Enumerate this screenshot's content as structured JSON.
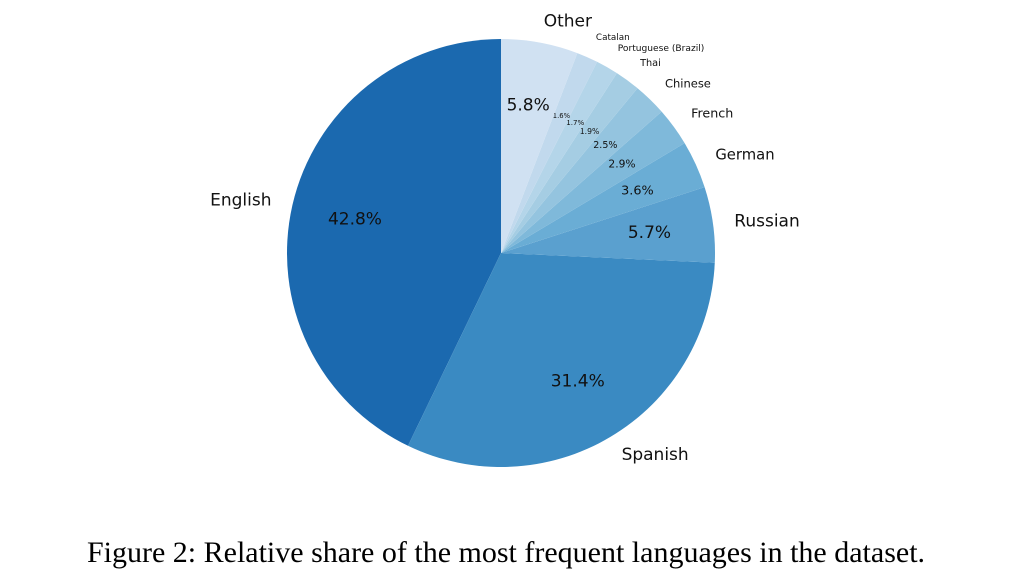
{
  "chart_data": {
    "type": "pie",
    "categories": [
      "English",
      "Spanish",
      "Russian",
      "German",
      "French",
      "Chinese",
      "Thai",
      "Portuguese (Brazil)",
      "Catalan",
      "Other"
    ],
    "values": [
      42.8,
      31.4,
      5.7,
      3.6,
      2.9,
      2.5,
      1.9,
      1.7,
      1.6,
      5.8
    ],
    "value_labels": [
      "42.8%",
      "31.4%",
      "5.7%",
      "3.6%",
      "2.9%",
      "2.5%",
      "1.9%",
      "1.7%",
      "1.6%",
      "5.8%"
    ],
    "colors": [
      "#1b69af",
      "#3a8ac2",
      "#5aa0cf",
      "#6aadd5",
      "#7fb9da",
      "#94c4df",
      "#a5cde3",
      "#b4d5e9",
      "#c1d9ed",
      "#d0e1f2"
    ],
    "caption": "Figure 2: Relative share of the most frequent languages in the dataset."
  }
}
